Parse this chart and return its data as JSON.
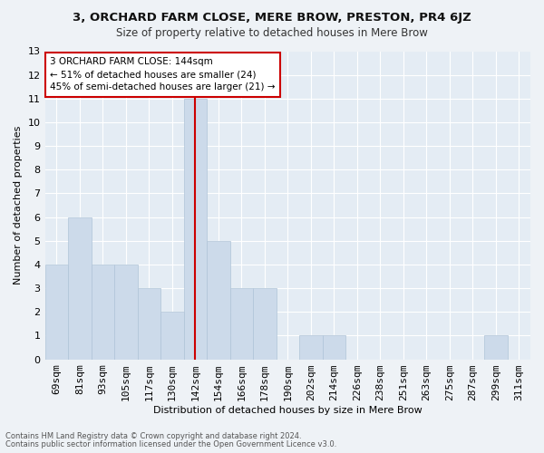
{
  "title": "3, ORCHARD FARM CLOSE, MERE BROW, PRESTON, PR4 6JZ",
  "subtitle": "Size of property relative to detached houses in Mere Brow",
  "xlabel": "Distribution of detached houses by size in Mere Brow",
  "ylabel": "Number of detached properties",
  "categories": [
    "69sqm",
    "81sqm",
    "93sqm",
    "105sqm",
    "117sqm",
    "130sqm",
    "142sqm",
    "154sqm",
    "166sqm",
    "178sqm",
    "190sqm",
    "202sqm",
    "214sqm",
    "226sqm",
    "238sqm",
    "251sqm",
    "263sqm",
    "275sqm",
    "287sqm",
    "299sqm",
    "311sqm"
  ],
  "values": [
    4,
    6,
    4,
    4,
    3,
    2,
    11,
    5,
    3,
    3,
    0,
    1,
    1,
    0,
    0,
    0,
    0,
    0,
    0,
    1,
    0
  ],
  "highlight_index": 6,
  "bar_color": "#ccdaea",
  "bar_edge_color": "#b0c4d8",
  "highlight_line_color": "#cc0000",
  "ylim": [
    0,
    13
  ],
  "yticks": [
    0,
    1,
    2,
    3,
    4,
    5,
    6,
    7,
    8,
    9,
    10,
    11,
    12,
    13
  ],
  "annotation_text": "3 ORCHARD FARM CLOSE: 144sqm\n← 51% of detached houses are smaller (24)\n45% of semi-detached houses are larger (21) →",
  "footnote1": "Contains HM Land Registry data © Crown copyright and database right 2024.",
  "footnote2": "Contains public sector information licensed under the Open Government Licence v3.0.",
  "bg_color": "#eef2f6",
  "plot_bg_color": "#e4ecf4",
  "grid_color": "#ffffff",
  "annotation_box_color": "#ffffff",
  "annotation_box_edge": "#cc0000",
  "title_fontsize": 9.5,
  "subtitle_fontsize": 8.5,
  "xlabel_fontsize": 8,
  "ylabel_fontsize": 8,
  "tick_fontsize": 8,
  "annot_fontsize": 7.5,
  "footnote_fontsize": 6
}
